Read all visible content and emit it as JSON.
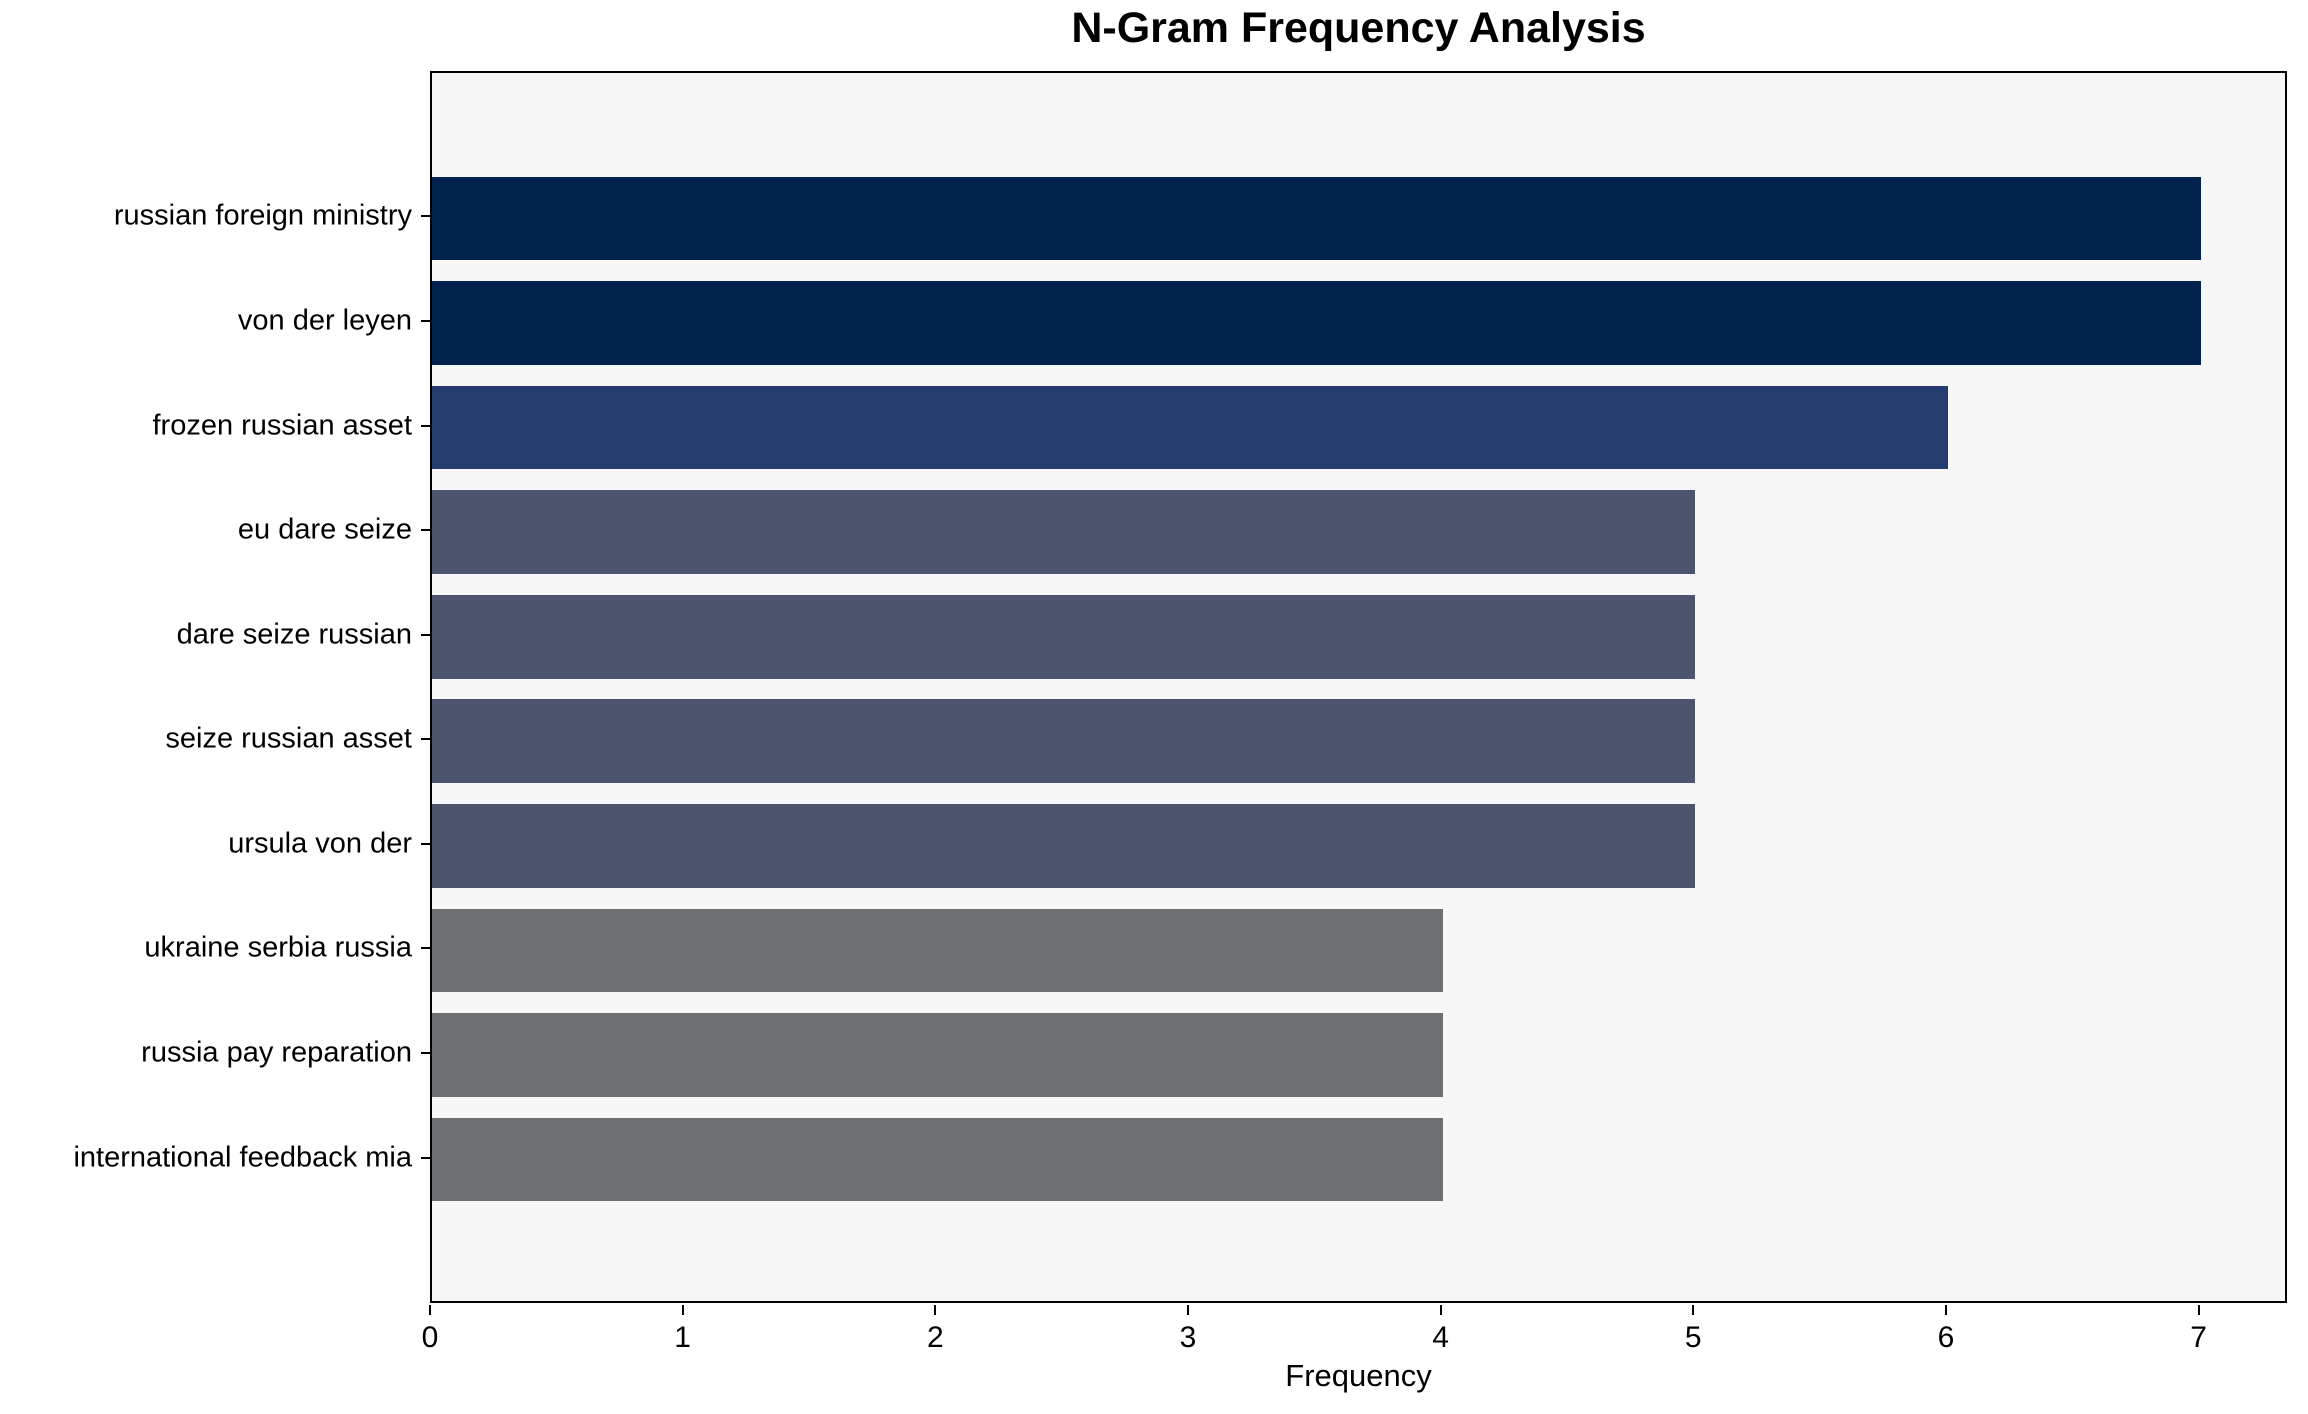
{
  "chart_data": {
    "type": "bar",
    "orientation": "horizontal",
    "title": "N-Gram Frequency Analysis",
    "xlabel": "Frequency",
    "ylabel": "",
    "categories": [
      "russian foreign ministry",
      "von der leyen",
      "frozen russian asset",
      "eu dare seize",
      "dare seize russian",
      "seize russian asset",
      "ursula von der",
      "ukraine serbia russia",
      "russia pay reparation",
      "international feedback mia"
    ],
    "values": [
      7,
      7,
      6,
      5,
      5,
      5,
      5,
      4,
      4,
      4
    ],
    "bar_colors": [
      "#02234e",
      "#02234e",
      "#243c6e",
      "#4d556e",
      "#4d556e",
      "#4d556e",
      "#4d556e",
      "#6e6f72",
      "#6e6f72",
      "#6e6f72"
    ],
    "x_ticks": [
      0,
      1,
      2,
      3,
      4,
      5,
      6,
      7
    ],
    "xlim": [
      0,
      7.35
    ],
    "grid": false,
    "legend": null,
    "colors": {
      "plot_background": "#f7f7f7",
      "figure_background": "#ffffff",
      "spine": "#000000",
      "text": "#000000"
    }
  }
}
